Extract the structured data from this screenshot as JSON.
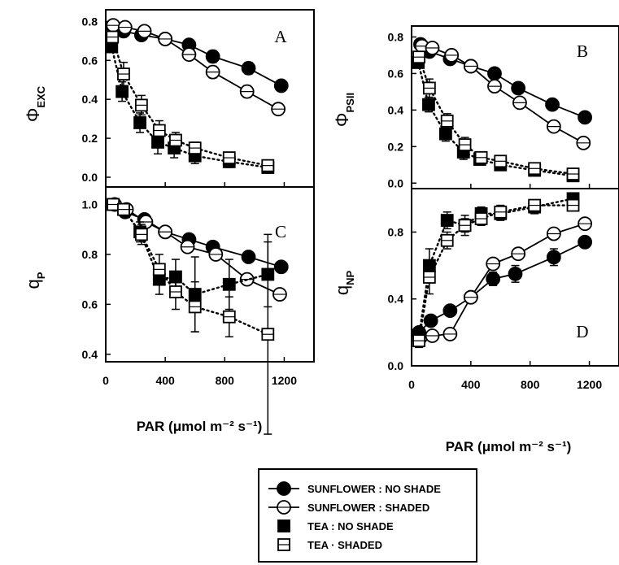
{
  "legend": [
    {
      "label": "SUNFLOWER : NO SHADE",
      "marker": "circle",
      "filled": true,
      "line": "solid"
    },
    {
      "label": "SUNFLOWER : SHADED",
      "marker": "circle",
      "filled": false,
      "line": "solid"
    },
    {
      "label": "TEA : NO SHADE",
      "marker": "square",
      "filled": true,
      "line": "dotted"
    },
    {
      "label": "TEA · SHADED",
      "marker": "square",
      "filled": false,
      "line": "dotted"
    }
  ],
  "chart_data": [
    {
      "type": "line",
      "panel": "A",
      "ylabel": "Φ",
      "ylabel_sub": "EXC",
      "xlabel": "PAR (μmol m⁻² s⁻¹)",
      "xlim": [
        0,
        1400
      ],
      "ylim": [
        -0.05,
        0.86
      ],
      "xticks": [
        0,
        400,
        800,
        1200
      ],
      "xtick_labels": [
        "0",
        "400",
        "800",
        "1200"
      ],
      "yticks": [
        0.0,
        0.2,
        0.4,
        0.6,
        0.8
      ],
      "ytick_labels": [
        "0.0",
        "0.2",
        "0.4",
        "0.6",
        "0.8"
      ],
      "series": [
        {
          "name": "SUNFLOWER : NO SHADE",
          "x": [
            50,
            120,
            240,
            400,
            560,
            720,
            960,
            1180
          ],
          "y": [
            0.77,
            0.75,
            0.73,
            0.71,
            0.68,
            0.62,
            0.56,
            0.47
          ],
          "err": [
            0.02,
            0.02,
            0.02,
            0.02,
            0.02,
            0.03,
            0.03,
            0.02
          ]
        },
        {
          "name": "SUNFLOWER : SHADED",
          "x": [
            50,
            130,
            260,
            400,
            560,
            720,
            950,
            1160
          ],
          "y": [
            0.78,
            0.77,
            0.75,
            0.71,
            0.63,
            0.54,
            0.44,
            0.35
          ],
          "err": [
            0.02,
            0.02,
            0.02,
            0.02,
            0.02,
            0.03,
            0.03,
            0.02
          ]
        },
        {
          "name": "TEA : NO SHADE",
          "x": [
            40,
            110,
            230,
            350,
            460,
            600,
            830,
            1090
          ],
          "y": [
            0.67,
            0.44,
            0.28,
            0.18,
            0.15,
            0.11,
            0.08,
            0.05
          ],
          "err": [
            0.03,
            0.05,
            0.05,
            0.06,
            0.05,
            0.04,
            0.03,
            0.02
          ]
        },
        {
          "name": "TEA · SHADED",
          "x": [
            45,
            120,
            240,
            360,
            470,
            600,
            830,
            1090
          ],
          "y": [
            0.72,
            0.53,
            0.37,
            0.24,
            0.19,
            0.15,
            0.1,
            0.06
          ],
          "err": [
            0.03,
            0.06,
            0.05,
            0.05,
            0.04,
            0.03,
            0.02,
            0.02
          ]
        }
      ]
    },
    {
      "type": "line",
      "panel": "B",
      "ylabel": "Φ",
      "ylabel_sub": "PSII",
      "xlabel": "PAR (μmol m⁻² s⁻¹)",
      "xlim": [
        0,
        1400
      ],
      "ylim": [
        -0.03,
        0.86
      ],
      "xticks": [
        0,
        400,
        800,
        1200
      ],
      "xtick_labels": [
        "0",
        "400",
        "800",
        "1200"
      ],
      "yticks": [
        0.0,
        0.2,
        0.4,
        0.6,
        0.8
      ],
      "ytick_labels": [
        "0.0",
        "0.2",
        "0.4",
        "0.6",
        "0.8"
      ],
      "series": [
        {
          "name": "SUNFLOWER : NO SHADE",
          "x": [
            60,
            120,
            260,
            400,
            560,
            720,
            950,
            1170
          ],
          "y": [
            0.76,
            0.72,
            0.68,
            0.64,
            0.6,
            0.52,
            0.43,
            0.36
          ],
          "err": [
            0.02,
            0.02,
            0.02,
            0.02,
            0.02,
            0.02,
            0.02,
            0.02
          ]
        },
        {
          "name": "SUNFLOWER : SHADED",
          "x": [
            70,
            140,
            270,
            400,
            560,
            730,
            960,
            1160
          ],
          "y": [
            0.75,
            0.74,
            0.7,
            0.64,
            0.53,
            0.44,
            0.31,
            0.22
          ],
          "err": [
            0.02,
            0.02,
            0.02,
            0.02,
            0.02,
            0.02,
            0.02,
            0.02
          ]
        },
        {
          "name": "TEA : NO SHADE",
          "x": [
            45,
            115,
            230,
            350,
            460,
            600,
            830,
            1090
          ],
          "y": [
            0.66,
            0.43,
            0.27,
            0.17,
            0.13,
            0.1,
            0.07,
            0.04
          ],
          "err": [
            0.03,
            0.04,
            0.04,
            0.04,
            0.03,
            0.03,
            0.02,
            0.02
          ]
        },
        {
          "name": "TEA · SHADED",
          "x": [
            50,
            120,
            240,
            360,
            470,
            600,
            830,
            1090
          ],
          "y": [
            0.69,
            0.52,
            0.34,
            0.21,
            0.14,
            0.12,
            0.08,
            0.05
          ],
          "err": [
            0.03,
            0.05,
            0.04,
            0.04,
            0.03,
            0.03,
            0.02,
            0.02
          ]
        }
      ]
    },
    {
      "type": "line",
      "panel": "C",
      "ylabel": "q",
      "ylabel_sub": "P",
      "xlabel": "PAR (μmol m⁻² s⁻¹)",
      "xlim": [
        0,
        1400
      ],
      "ylim": [
        0.37,
        1.07
      ],
      "xticks": [
        0,
        400,
        800,
        1200
      ],
      "xtick_labels": [
        "0",
        "400",
        "800",
        "1200"
      ],
      "yticks": [
        0.4,
        0.6,
        0.8,
        1.0
      ],
      "ytick_labels": [
        "0.4",
        "0.6",
        "0.8",
        "1.0"
      ],
      "series": [
        {
          "name": "SUNFLOWER : NO SHADE",
          "x": [
            60,
            130,
            260,
            400,
            560,
            720,
            960,
            1180
          ],
          "y": [
            1.0,
            0.97,
            0.94,
            0.89,
            0.86,
            0.83,
            0.79,
            0.75
          ],
          "err": [
            0.01,
            0.01,
            0.02,
            0.02,
            0.02,
            0.02,
            0.02,
            0.02
          ]
        },
        {
          "name": "SUNFLOWER : SHADED",
          "x": [
            60,
            140,
            270,
            400,
            550,
            740,
            950,
            1170
          ],
          "y": [
            1.0,
            0.98,
            0.93,
            0.89,
            0.83,
            0.8,
            0.7,
            0.64
          ],
          "err": [
            0.01,
            0.01,
            0.02,
            0.02,
            0.02,
            0.02,
            0.02,
            0.02
          ]
        },
        {
          "name": "TEA : NO SHADE",
          "x": [
            50,
            120,
            230,
            360,
            470,
            600,
            830,
            1090
          ],
          "y": [
            1.0,
            0.98,
            0.89,
            0.7,
            0.71,
            0.64,
            0.68,
            0.72
          ],
          "err": [
            0.01,
            0.02,
            0.04,
            0.06,
            0.07,
            0.15,
            0.1,
            0.13
          ]
        },
        {
          "name": "TEA · SHADED",
          "x": [
            50,
            120,
            240,
            360,
            470,
            600,
            830,
            1090
          ],
          "y": [
            1.0,
            0.98,
            0.88,
            0.74,
            0.65,
            0.59,
            0.55,
            0.48
          ],
          "err": [
            0.01,
            0.02,
            0.04,
            0.06,
            0.07,
            0.1,
            0.08,
            0.4
          ]
        }
      ]
    },
    {
      "type": "line",
      "panel": "D",
      "ylabel": "q",
      "ylabel_sub": "NP",
      "xlabel": "PAR (μmol m⁻² s⁻¹)",
      "xlim": [
        0,
        1400
      ],
      "ylim": [
        0,
        1.06
      ],
      "xticks": [
        0,
        400,
        800,
        1200
      ],
      "xtick_labels": [
        "0",
        "400",
        "800",
        "1200"
      ],
      "yticks": [
        0.0,
        0.4,
        0.8
      ],
      "ytick_labels": [
        "0.0",
        "0.4",
        "0.8"
      ],
      "series": [
        {
          "name": "SUNFLOWER : NO SHADE",
          "x": [
            50,
            130,
            260,
            400,
            550,
            700,
            960,
            1170
          ],
          "y": [
            0.2,
            0.27,
            0.33,
            0.41,
            0.52,
            0.55,
            0.65,
            0.74
          ],
          "err": [
            0.02,
            0.02,
            0.02,
            0.03,
            0.04,
            0.05,
            0.05,
            0.03
          ]
        },
        {
          "name": "SUNFLOWER : SHADED",
          "x": [
            60,
            140,
            260,
            400,
            550,
            720,
            960,
            1170
          ],
          "y": [
            0.17,
            0.18,
            0.19,
            0.41,
            0.61,
            0.67,
            0.79,
            0.85
          ],
          "err": [
            0.02,
            0.02,
            0.02,
            0.03,
            0.03,
            0.03,
            0.03,
            0.03
          ]
        },
        {
          "name": "TEA : NO SHADE",
          "x": [
            50,
            120,
            240,
            360,
            470,
            600,
            830,
            1090
          ],
          "y": [
            0.18,
            0.6,
            0.87,
            0.84,
            0.91,
            0.91,
            0.95,
            1.0
          ],
          "err": [
            0.04,
            0.1,
            0.05,
            0.06,
            0.04,
            0.04,
            0.04,
            0.03
          ]
        },
        {
          "name": "TEA · SHADED",
          "x": [
            50,
            120,
            240,
            360,
            470,
            600,
            830,
            1090
          ],
          "y": [
            0.15,
            0.53,
            0.75,
            0.84,
            0.88,
            0.92,
            0.96,
            0.96
          ],
          "err": [
            0.04,
            0.1,
            0.05,
            0.04,
            0.04,
            0.04,
            0.03,
            0.03
          ]
        }
      ]
    }
  ]
}
